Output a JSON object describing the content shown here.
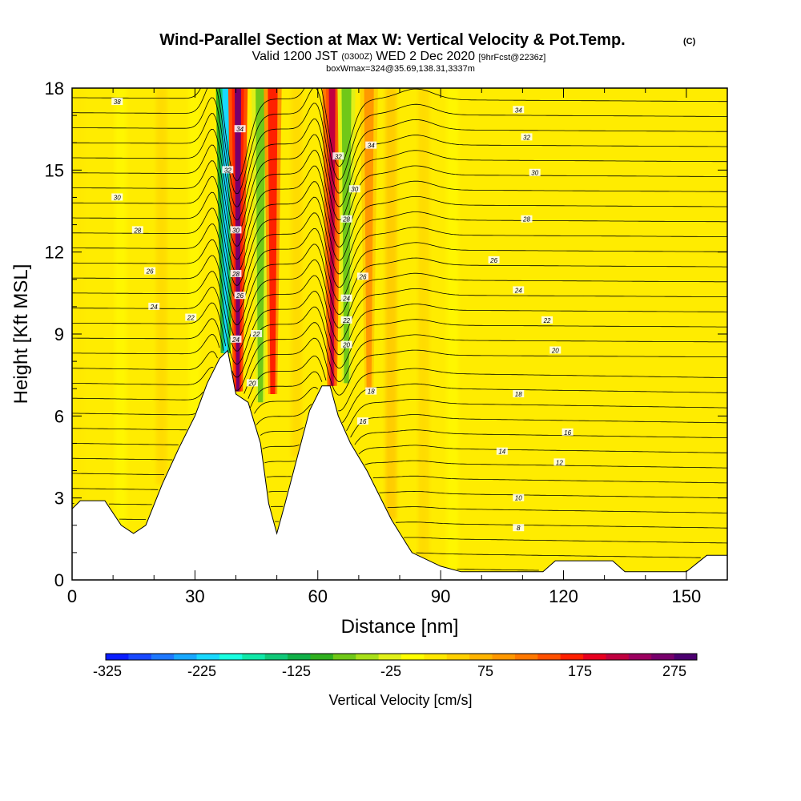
{
  "title": {
    "main": "Wind-Parallel Section at Max W: Vertical Velocity & Pot.Temp.",
    "copyright": "(C)",
    "valid_prefix": "Valid 1200 JST",
    "valid_utc": "(0300Z)",
    "valid_date": "WED 2 Dec 2020",
    "forecast": "[9hrFcst@2236z]",
    "box": "boxWmax=324@35.69,138.31,3337m"
  },
  "chart_data": {
    "type": "heatmap",
    "xlabel": "Distance [nm]",
    "ylabel": "Height [Kft MSL]",
    "xlim": [
      0,
      160
    ],
    "ylim": [
      0,
      18
    ],
    "x_ticks": [
      0,
      30,
      60,
      90,
      120,
      150
    ],
    "y_ticks": [
      0,
      3,
      6,
      9,
      12,
      15,
      18
    ],
    "colorbar": {
      "title": "Vertical Velocity [cm/s]",
      "tick_labels": [
        "-325",
        "-225",
        "-125",
        "-25",
        "75",
        "175",
        "275"
      ],
      "colors": [
        "#0a1dff",
        "#1848ff",
        "#1e78ff",
        "#18a8ff",
        "#18d8ff",
        "#18ffe0",
        "#10e8a8",
        "#10c878",
        "#10b048",
        "#30b020",
        "#70c818",
        "#a8e018",
        "#e0f018",
        "#ffff00",
        "#ffe800",
        "#ffd000",
        "#ffb400",
        "#ff9800",
        "#ff7800",
        "#ff5000",
        "#ff2000",
        "#e80020",
        "#c00040",
        "#9c0060",
        "#78006c",
        "#4c0070"
      ]
    },
    "terrain": [
      [
        0,
        2.6
      ],
      [
        2,
        2.9
      ],
      [
        8,
        2.9
      ],
      [
        12,
        2.0
      ],
      [
        15,
        1.7
      ],
      [
        18,
        2.0
      ],
      [
        22,
        3.5
      ],
      [
        26,
        4.8
      ],
      [
        30,
        6.0
      ],
      [
        33,
        7.2
      ],
      [
        36,
        8.1
      ],
      [
        38,
        8.4
      ],
      [
        40,
        6.8
      ],
      [
        43,
        6.5
      ],
      [
        46,
        5.0
      ],
      [
        48,
        2.8
      ],
      [
        50,
        1.7
      ],
      [
        52,
        2.8
      ],
      [
        55,
        4.5
      ],
      [
        58,
        6.2
      ],
      [
        61,
        7.1
      ],
      [
        63,
        7.1
      ],
      [
        65,
        6.0
      ],
      [
        68,
        5.0
      ],
      [
        72,
        4.0
      ],
      [
        78,
        2.2
      ],
      [
        83,
        1.0
      ],
      [
        90,
        0.5
      ],
      [
        95,
        0.3
      ],
      [
        115,
        0.3
      ],
      [
        118,
        0.7
      ],
      [
        132,
        0.7
      ],
      [
        135,
        0.3
      ],
      [
        150,
        0.3
      ],
      [
        155,
        0.9
      ],
      [
        160,
        0.9
      ]
    ],
    "w_features": [
      {
        "x": 37.5,
        "z_bottom": 8.3,
        "w": -250
      },
      {
        "x": 40.5,
        "z_bottom": 6.9,
        "w": 250
      },
      {
        "x": 46.0,
        "z_bottom": 6.5,
        "w": -100
      },
      {
        "x": 49.0,
        "z_bottom": 6.8,
        "w": 150
      },
      {
        "x": 63.5,
        "z_bottom": 7.1,
        "w": 200
      },
      {
        "x": 67.0,
        "z_bottom": 7.2,
        "w": -100
      },
      {
        "x": 72.5,
        "z_bottom": 7.0,
        "w": 75
      }
    ],
    "theta_contour_labels": [
      {
        "x": 11,
        "z": 17.5,
        "text": "38"
      },
      {
        "x": 11,
        "z": 14.0,
        "text": "30"
      },
      {
        "x": 16,
        "z": 12.8,
        "text": "28"
      },
      {
        "x": 19,
        "z": 11.3,
        "text": "26"
      },
      {
        "x": 20,
        "z": 10.0,
        "text": "24"
      },
      {
        "x": 29,
        "z": 9.6,
        "text": "22"
      },
      {
        "x": 41,
        "z": 16.5,
        "text": "34"
      },
      {
        "x": 38,
        "z": 15.0,
        "text": "32"
      },
      {
        "x": 40,
        "z": 12.8,
        "text": "30"
      },
      {
        "x": 40,
        "z": 11.2,
        "text": "28"
      },
      {
        "x": 41,
        "z": 10.4,
        "text": "26"
      },
      {
        "x": 40,
        "z": 8.8,
        "text": "24"
      },
      {
        "x": 45,
        "z": 9.0,
        "text": "22"
      },
      {
        "x": 44,
        "z": 7.2,
        "text": "20"
      },
      {
        "x": 65,
        "z": 15.5,
        "text": "32"
      },
      {
        "x": 73,
        "z": 15.9,
        "text": "34"
      },
      {
        "x": 69,
        "z": 14.3,
        "text": "30"
      },
      {
        "x": 67,
        "z": 13.2,
        "text": "28"
      },
      {
        "x": 71,
        "z": 11.1,
        "text": "26"
      },
      {
        "x": 67,
        "z": 10.3,
        "text": "24"
      },
      {
        "x": 67,
        "z": 9.5,
        "text": "22"
      },
      {
        "x": 67,
        "z": 8.6,
        "text": "20"
      },
      {
        "x": 73,
        "z": 6.9,
        "text": "18"
      },
      {
        "x": 71,
        "z": 5.8,
        "text": "16"
      },
      {
        "x": 109,
        "z": 17.2,
        "text": "34"
      },
      {
        "x": 111,
        "z": 16.2,
        "text": "32"
      },
      {
        "x": 113,
        "z": 14.9,
        "text": "30"
      },
      {
        "x": 111,
        "z": 13.2,
        "text": "28"
      },
      {
        "x": 103,
        "z": 11.7,
        "text": "26"
      },
      {
        "x": 109,
        "z": 10.6,
        "text": "24"
      },
      {
        "x": 116,
        "z": 9.5,
        "text": "22"
      },
      {
        "x": 118,
        "z": 8.4,
        "text": "20"
      },
      {
        "x": 109,
        "z": 6.8,
        "text": "18"
      },
      {
        "x": 121,
        "z": 5.4,
        "text": "16"
      },
      {
        "x": 105,
        "z": 4.7,
        "text": "14"
      },
      {
        "x": 119,
        "z": 4.3,
        "text": "12"
      },
      {
        "x": 109,
        "z": 3.0,
        "text": "10"
      },
      {
        "x": 109,
        "z": 1.9,
        "text": "8"
      }
    ]
  }
}
